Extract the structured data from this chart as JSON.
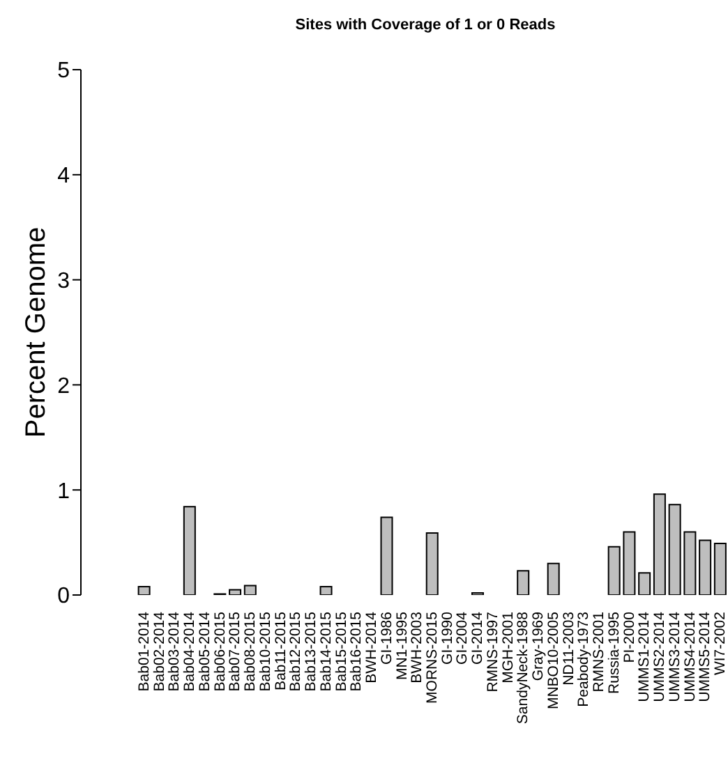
{
  "chart_data": {
    "type": "bar",
    "title": "Sites with Coverage of 1 or 0 Reads",
    "ylabel": "Percent Genome",
    "categories": [
      "Bab01-2014",
      "Bab02-2014",
      "Bab03-2014",
      "Bab04-2014",
      "Bab05-2014",
      "Bab06-2015",
      "Bab07-2015",
      "Bab08-2015",
      "Bab10-2015",
      "Bab11-2015",
      "Bab12-2015",
      "Bab13-2015",
      "Bab14-2015",
      "Bab15-2015",
      "Bab16-2015",
      "BWH-2014",
      "GI-1986",
      "MN1-1995",
      "BWH-2003",
      "MORNS-2015",
      "GI-1990",
      "GI-2004",
      "GI-2014",
      "RMNS-1997",
      "MGH-2001",
      "SandyNeck-1988",
      "Gray-1969",
      "MNBO10-2005",
      "ND11-2003",
      "Peabody-1973",
      "RMNS-2001",
      "Russia-1995",
      "PI-2000",
      "UMMS1-2014",
      "UMMS2-2014",
      "UMMS3-2014",
      "UMMS4-2014",
      "UMMS5-2014",
      "WI7-2002"
    ],
    "values": [
      0.08,
      0,
      0,
      0.84,
      0,
      0.01,
      0.05,
      0.09,
      0,
      0,
      0,
      0,
      0.08,
      0,
      0,
      0,
      0.74,
      0,
      0,
      0.59,
      0,
      0,
      0.02,
      0,
      0,
      0.23,
      0,
      0.3,
      0,
      0,
      0,
      0.46,
      0.6,
      0.21,
      0.96,
      0.86,
      0.6,
      0.52,
      0.49
    ],
    "color": "#bebebe",
    "ylim": [
      0,
      5
    ],
    "yticks": [
      0,
      1,
      2,
      3,
      4,
      5
    ],
    "grid": false
  }
}
